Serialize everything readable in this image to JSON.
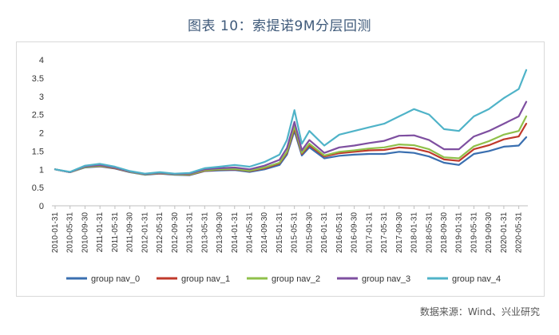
{
  "title": "图表 10：索提诺9M分层回测",
  "source": "数据来源：Wind、兴业研究",
  "chart_data": {
    "type": "line",
    "title": "图表 10：索提诺9M分层回测",
    "ylim": [
      0,
      4
    ],
    "yticks": [
      "0",
      "0.5",
      "1",
      "1.5",
      "2",
      "2.5",
      "3",
      "3.5",
      "4"
    ],
    "xticks": [
      "2010-01-31",
      "2010-05-31",
      "2010-09-30",
      "2011-01-31",
      "2011-05-31",
      "2011-09-30",
      "2012-01-31",
      "2012-05-31",
      "2012-09-30",
      "2013-01-31",
      "2013-05-31",
      "2013-09-30",
      "2014-01-31",
      "2014-05-31",
      "2014-09-30",
      "2015-01-31",
      "2015-05-31",
      "2015-09-30",
      "2016-01-31",
      "2016-05-31",
      "2016-09-30",
      "2017-01-31",
      "2017-05-31",
      "2017-09-30",
      "2018-01-31",
      "2018-05-31",
      "2018-09-30",
      "2019-01-31",
      "2019-05-31",
      "2019-09-30",
      "2020-01-31",
      "2020-05-31"
    ],
    "x": [
      "2010-01",
      "2010-05",
      "2010-09",
      "2011-01",
      "2011-05",
      "2011-09",
      "2012-01",
      "2012-05",
      "2012-09",
      "2013-01",
      "2013-05",
      "2013-09",
      "2014-01",
      "2014-05",
      "2014-09",
      "2015-01",
      "2015-03",
      "2015-05",
      "2015-07",
      "2015-09",
      "2016-01",
      "2016-05",
      "2016-09",
      "2017-01",
      "2017-05",
      "2017-09",
      "2018-01",
      "2018-05",
      "2018-09",
      "2019-01",
      "2019-05",
      "2019-09",
      "2020-01",
      "2020-05",
      "2020-07"
    ],
    "legend_position": "bottom",
    "grid": false,
    "series": [
      {
        "name": "group nav_0",
        "color": "#3a6fb0",
        "values": [
          1.0,
          0.92,
          1.05,
          1.08,
          1.02,
          0.92,
          0.85,
          0.88,
          0.85,
          0.84,
          0.95,
          0.97,
          0.98,
          0.93,
          1.0,
          1.12,
          1.4,
          2.05,
          1.38,
          1.6,
          1.3,
          1.37,
          1.4,
          1.42,
          1.42,
          1.48,
          1.45,
          1.35,
          1.18,
          1.12,
          1.42,
          1.5,
          1.62,
          1.65,
          1.88
        ]
      },
      {
        "name": "group nav_1",
        "color": "#c0392b",
        "values": [
          1.0,
          0.92,
          1.06,
          1.09,
          1.03,
          0.93,
          0.86,
          0.89,
          0.86,
          0.85,
          0.96,
          0.99,
          1.0,
          0.95,
          1.03,
          1.16,
          1.45,
          2.12,
          1.42,
          1.66,
          1.35,
          1.44,
          1.48,
          1.52,
          1.53,
          1.6,
          1.57,
          1.47,
          1.27,
          1.23,
          1.55,
          1.66,
          1.82,
          1.9,
          2.25
        ]
      },
      {
        "name": "group nav_2",
        "color": "#8fc04a",
        "values": [
          1.0,
          0.92,
          1.06,
          1.1,
          1.04,
          0.93,
          0.86,
          0.9,
          0.86,
          0.86,
          0.97,
          1.0,
          1.01,
          0.96,
          1.05,
          1.18,
          1.48,
          2.18,
          1.45,
          1.7,
          1.38,
          1.48,
          1.52,
          1.57,
          1.6,
          1.68,
          1.66,
          1.55,
          1.33,
          1.3,
          1.63,
          1.77,
          1.95,
          2.05,
          2.45
        ]
      },
      {
        "name": "group nav_3",
        "color": "#7e4fa0",
        "values": [
          1.0,
          0.92,
          1.08,
          1.12,
          1.05,
          0.94,
          0.87,
          0.91,
          0.87,
          0.88,
          1.0,
          1.03,
          1.05,
          1.0,
          1.1,
          1.26,
          1.58,
          2.3,
          1.52,
          1.8,
          1.45,
          1.6,
          1.65,
          1.72,
          1.78,
          1.92,
          1.93,
          1.8,
          1.55,
          1.55,
          1.9,
          2.05,
          2.25,
          2.45,
          2.85
        ]
      },
      {
        "name": "group nav_4",
        "color": "#4fb3c8",
        "values": [
          1.0,
          0.93,
          1.1,
          1.15,
          1.07,
          0.95,
          0.88,
          0.92,
          0.88,
          0.9,
          1.03,
          1.07,
          1.12,
          1.07,
          1.2,
          1.4,
          1.8,
          2.62,
          1.7,
          2.05,
          1.65,
          1.95,
          2.05,
          2.15,
          2.25,
          2.45,
          2.65,
          2.5,
          2.1,
          2.05,
          2.45,
          2.65,
          2.95,
          3.2,
          3.72
        ]
      }
    ]
  }
}
